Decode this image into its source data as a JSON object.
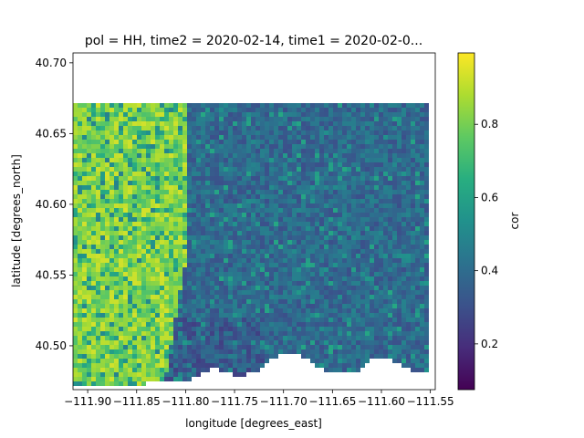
{
  "chart_data": {
    "type": "heatmap",
    "title": "pol = HH, time2 = 2020-02-14, time1 = 2020-02-0...",
    "xlabel": "longitude [degrees_east]",
    "ylabel": "latitude [degrees_north]",
    "xlim": [
      -111.915,
      -111.545
    ],
    "ylim": [
      40.469,
      40.707
    ],
    "xticks": [
      -111.9,
      -111.85,
      -111.8,
      -111.75,
      -111.7,
      -111.65,
      -111.6,
      -111.55
    ],
    "xtick_labels": [
      "−111.90",
      "−111.85",
      "−111.80",
      "−111.75",
      "−111.70",
      "−111.65",
      "−111.60",
      "−111.55"
    ],
    "yticks": [
      40.5,
      40.55,
      40.6,
      40.65,
      40.7
    ],
    "ytick_labels": [
      "40.50",
      "40.55",
      "40.60",
      "40.65",
      "40.70"
    ],
    "colorbar": {
      "label": "cor",
      "colormap": "viridis",
      "range": [
        0.075,
        0.995
      ],
      "ticks": [
        0.2,
        0.4,
        0.6,
        0.8
      ],
      "tick_labels": [
        "0.2",
        "0.4",
        "0.6",
        "0.8"
      ]
    },
    "grid": false,
    "data_extent": {
      "lon_min": -111.913,
      "lon_max": -111.552,
      "lat_top": 40.673,
      "lat_bottom_west": 40.471,
      "lat_bottom_east": 40.482
    },
    "regions": [
      {
        "area": "west (lon < -111.80)",
        "typical_cor": 0.75
      },
      {
        "area": "east (lon > -111.80)",
        "typical_cor": 0.35
      }
    ]
  }
}
